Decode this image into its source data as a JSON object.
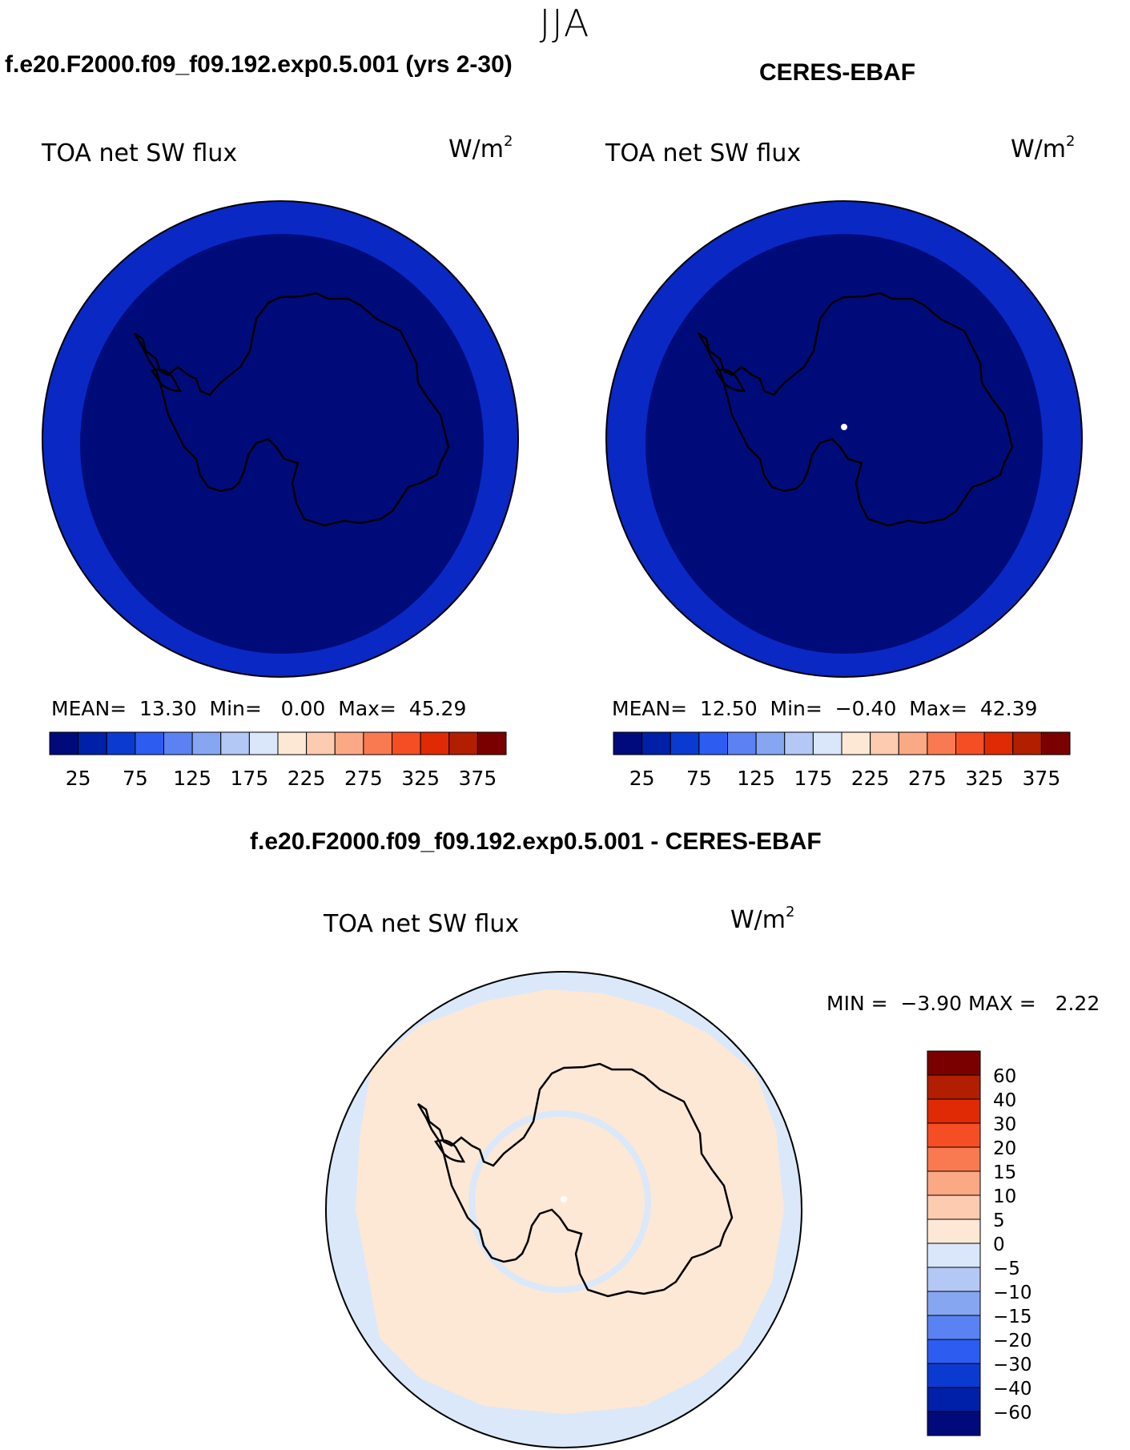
{
  "season": "JJA",
  "panels": [
    {
      "case_title": "f.e20.F2000.f09_f09.192.exp0.5.001 (yrs 2-30)",
      "variable": "TOA net SW flux",
      "unit_base": "W/m",
      "unit_exp": "2",
      "stats": {
        "mean_label": "MEAN=",
        "mean": "13.30",
        "min_label": "Min=",
        "min": "0.00",
        "max_label": "Max=",
        "max": "45.29"
      }
    },
    {
      "case_title": "CERES-EBAF",
      "variable": "TOA net SW flux",
      "unit_base": "W/m",
      "unit_exp": "2",
      "stats": {
        "mean_label": "MEAN=",
        "mean": "12.50",
        "min_label": "Min=",
        "min": "−0.40",
        "max_label": "Max=",
        "max": "42.39"
      }
    },
    {
      "case_title": "f.e20.F2000.f09_f09.192.exp0.5.001 - CERES-EBAF",
      "variable": "TOA net SW flux",
      "unit_base": "W/m",
      "unit_exp": "2",
      "stats": {
        "min_label": "MIN =",
        "min": "−3.90",
        "max_label": "MAX =",
        "max": "2.22"
      }
    }
  ],
  "colorbar_abs": {
    "colors": [
      "#000a7a",
      "#0020a8",
      "#0a3ad0",
      "#2d5cf0",
      "#5a82f2",
      "#86a6f2",
      "#b4c8f6",
      "#dae6fa",
      "#fde8d6",
      "#fdcbb0",
      "#fba885",
      "#f97a50",
      "#f54e24",
      "#e02a06",
      "#b21e00",
      "#7a0000"
    ],
    "tick_labels": [
      "25",
      "75",
      "125",
      "175",
      "225",
      "275",
      "325",
      "375"
    ]
  },
  "colorbar_diff": {
    "colors": [
      "#000a7a",
      "#0020a8",
      "#0a3ad0",
      "#2d5cf0",
      "#5a82f2",
      "#86a6f2",
      "#b4c8f6",
      "#dae6fa",
      "#fde8d6",
      "#fdcbb0",
      "#fba885",
      "#f97a50",
      "#f54e24",
      "#e02a06",
      "#b21e00",
      "#7a0000"
    ],
    "tick_labels": [
      "−60",
      "−40",
      "−30",
      "−20",
      "−15",
      "−10",
      "−5",
      "0",
      "5",
      "10",
      "15",
      "20",
      "30",
      "40",
      "60"
    ]
  },
  "map_colors": {
    "abs_outer": "#0a28c4",
    "abs_inner": "#000b7a",
    "diff_pos": "#fde8d6",
    "diff_neg": "#dae8fa"
  }
}
